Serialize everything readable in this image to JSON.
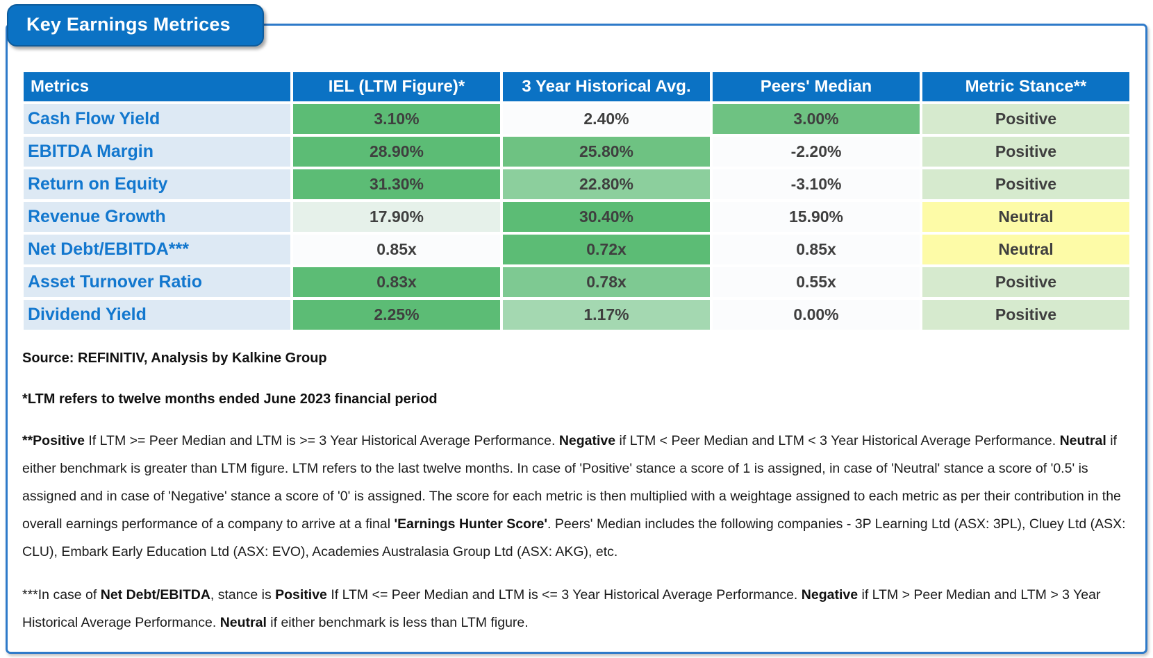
{
  "title": "Key Earnings Metrices",
  "colors": {
    "header_bg": "#0b72c4",
    "label_bg": "#dde9f4",
    "label_text": "#1277ce",
    "green_strong": "#5cbc75",
    "green_medium": "#6ec282",
    "green_soft": "#7ec992",
    "green_light": "#8ccf9d",
    "green_pale": "#a4d8b1",
    "green_faint": "#e6f1ea",
    "white_cell": "#fbfcfd",
    "stance_positive": "#d6eace",
    "stance_neutral": "#fdfba7"
  },
  "table": {
    "headers": [
      "Metrics",
      "IEL (LTM Figure)*",
      "3 Year Historical Avg.",
      "Peers' Median",
      "Metric Stance**"
    ],
    "rows": [
      {
        "metric": "Cash Flow Yield",
        "cells": [
          {
            "value": "3.10%",
            "bg": "green_strong"
          },
          {
            "value": "2.40%",
            "bg": "white_cell"
          },
          {
            "value": "3.00%",
            "bg": "green_medium"
          },
          {
            "value": "Positive",
            "bg": "stance_positive"
          }
        ]
      },
      {
        "metric": "EBITDA Margin",
        "cells": [
          {
            "value": "28.90%",
            "bg": "green_strong"
          },
          {
            "value": "25.80%",
            "bg": "green_medium"
          },
          {
            "value": "-2.20%",
            "bg": "white_cell"
          },
          {
            "value": "Positive",
            "bg": "stance_positive"
          }
        ]
      },
      {
        "metric": "Return on Equity",
        "cells": [
          {
            "value": "31.30%",
            "bg": "green_strong"
          },
          {
            "value": "22.80%",
            "bg": "green_light"
          },
          {
            "value": "-3.10%",
            "bg": "white_cell"
          },
          {
            "value": "Positive",
            "bg": "stance_positive"
          }
        ]
      },
      {
        "metric": "Revenue Growth",
        "cells": [
          {
            "value": "17.90%",
            "bg": "green_faint"
          },
          {
            "value": "30.40%",
            "bg": "green_strong"
          },
          {
            "value": "15.90%",
            "bg": "white_cell"
          },
          {
            "value": "Neutral",
            "bg": "stance_neutral"
          }
        ]
      },
      {
        "metric": "Net Debt/EBITDA***",
        "cells": [
          {
            "value": "0.85x",
            "bg": "white_cell"
          },
          {
            "value": "0.72x",
            "bg": "green_strong"
          },
          {
            "value": "0.85x",
            "bg": "white_cell"
          },
          {
            "value": "Neutral",
            "bg": "stance_neutral"
          }
        ]
      },
      {
        "metric": "Asset Turnover Ratio",
        "cells": [
          {
            "value": "0.83x",
            "bg": "green_strong"
          },
          {
            "value": "0.78x",
            "bg": "green_soft"
          },
          {
            "value": "0.55x",
            "bg": "white_cell"
          },
          {
            "value": "Positive",
            "bg": "stance_positive"
          }
        ]
      },
      {
        "metric": "Dividend Yield",
        "cells": [
          {
            "value": "2.25%",
            "bg": "green_strong"
          },
          {
            "value": "1.17%",
            "bg": "green_pale"
          },
          {
            "value": "0.00%",
            "bg": "white_cell"
          },
          {
            "value": "Positive",
            "bg": "stance_positive"
          }
        ]
      }
    ]
  },
  "footnotes": {
    "source": "Source: REFINITIV, Analysis by Kalkine Group",
    "ltm_note": "*LTM refers to twelve months ended June 2023 financial period",
    "stance_definition": [
      {
        "t": "**Positive",
        "b": true
      },
      {
        "t": " If LTM >= Peer Median and LTM is >= 3 Year Historical Average Performance. ",
        "b": false
      },
      {
        "t": "Negative",
        "b": true
      },
      {
        "t": " if LTM < Peer Median and LTM < 3 Year Historical Average Performance. ",
        "b": false
      },
      {
        "t": "Neutral",
        "b": true
      },
      {
        "t": " if either benchmark is greater than LTM figure. LTM refers to the last twelve months. In case of 'Positive' stance a score of 1 is assigned, in case of 'Neutral' stance a score of '0.5' is assigned and in case of 'Negative' stance a score of '0' is assigned. The score for each metric is then multiplied with a weightage assigned to each metric as per their contribution in the overall earnings performance of a company to arrive at a final ",
        "b": false
      },
      {
        "t": "'Earnings Hunter Score'",
        "b": true
      },
      {
        "t": ". Peers' Median includes the following companies - 3P Learning Ltd (ASX: 3PL), Cluey Ltd (ASX: CLU), Embark Early Education Ltd (ASX: EVO), Academies Australasia Group Ltd (ASX: AKG), etc.",
        "b": false
      }
    ],
    "netdebt_definition": [
      {
        "t": "***In case of ",
        "b": false
      },
      {
        "t": "Net Debt/EBITDA",
        "b": true
      },
      {
        "t": ", stance is ",
        "b": false
      },
      {
        "t": "Positive",
        "b": true
      },
      {
        "t": " If LTM <= Peer Median and LTM is <= 3 Year Historical Average Performance. ",
        "b": false
      },
      {
        "t": "Negative",
        "b": true
      },
      {
        "t": " if LTM > Peer Median and LTM > 3 Year Historical Average Performance. ",
        "b": false
      },
      {
        "t": "Neutral",
        "b": true
      },
      {
        "t": " if either benchmark is less than LTM figure.",
        "b": false
      }
    ]
  },
  "chart_data": {
    "type": "table",
    "title": "Key Earnings Metrices",
    "columns": [
      "Metrics",
      "IEL (LTM Figure)*",
      "3 Year Historical Avg.",
      "Peers' Median",
      "Metric Stance**"
    ],
    "rows": [
      [
        "Cash Flow Yield",
        "3.10%",
        "2.40%",
        "3.00%",
        "Positive"
      ],
      [
        "EBITDA Margin",
        "28.90%",
        "25.80%",
        "-2.20%",
        "Positive"
      ],
      [
        "Return on Equity",
        "31.30%",
        "22.80%",
        "-3.10%",
        "Positive"
      ],
      [
        "Revenue Growth",
        "17.90%",
        "30.40%",
        "15.90%",
        "Neutral"
      ],
      [
        "Net Debt/EBITDA***",
        "0.85x",
        "0.72x",
        "0.85x",
        "Neutral"
      ],
      [
        "Asset Turnover Ratio",
        "0.83x",
        "0.78x",
        "0.55x",
        "Positive"
      ],
      [
        "Dividend Yield",
        "2.25%",
        "1.17%",
        "0.00%",
        "Positive"
      ]
    ]
  }
}
